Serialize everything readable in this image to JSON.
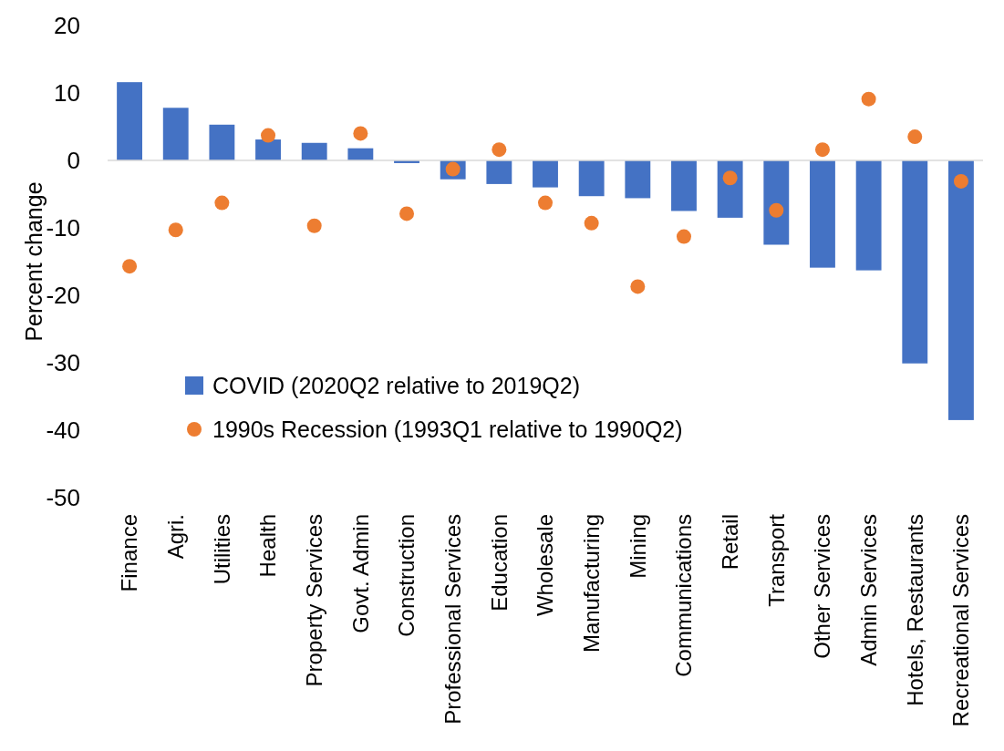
{
  "chart_data": {
    "type": "bar",
    "ylabel": "Percent change",
    "categories": [
      "Finance",
      "Agri.",
      "Utilities",
      "Health",
      "Property Services",
      "Govt. Admin",
      "Construction",
      "Professional Services",
      "Education",
      "Wholesale",
      "Manufacturing",
      "Mining",
      "Communications",
      "Retail",
      "Transport",
      "Other Services",
      "Admin Services",
      "Hotels, Restaurants",
      "Recreational Services"
    ],
    "series": [
      {
        "name": "COVID (2020Q2 relative to 2019Q2)",
        "color": "#4472c4",
        "values": [
          11.6,
          7.8,
          5.3,
          3.1,
          2.6,
          1.8,
          -0.4,
          -2.8,
          -3.5,
          -4.0,
          -5.3,
          -5.6,
          -7.5,
          -8.5,
          -12.5,
          -15.9,
          -16.3,
          -30.1,
          -38.5
        ]
      },
      {
        "name": "1990s Recession (1993Q1 relative to 1990Q2)",
        "type": "scatter",
        "color": "#ed7d31",
        "marker": "circle",
        "values": [
          -15.7,
          -10.3,
          -6.3,
          3.7,
          -9.7,
          4.0,
          -7.9,
          -1.3,
          1.6,
          -6.3,
          -9.3,
          -18.7,
          -11.3,
          -2.6,
          -7.4,
          1.6,
          9.1,
          3.5,
          -3.1
        ]
      }
    ],
    "ylim": [
      -50,
      20
    ],
    "yticks": [
      -50,
      -40,
      -30,
      -20,
      -10,
      0,
      10,
      20
    ],
    "legend": "bottom left"
  }
}
